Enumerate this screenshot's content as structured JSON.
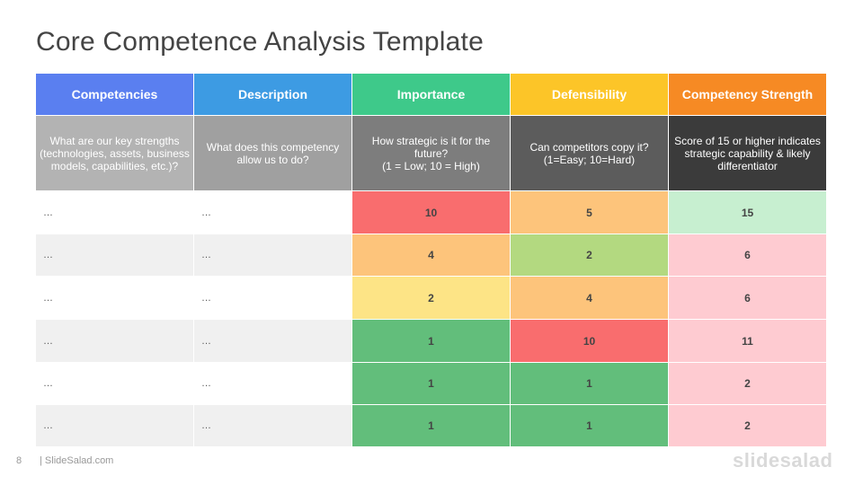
{
  "title": "Core Competence Analysis Template",
  "colors": {
    "header": [
      "#5a7ff0",
      "#3d9be3",
      "#3ec98a",
      "#fcc528",
      "#f68a24"
    ],
    "question": [
      "#b3b3b3",
      "#a0a0a0",
      "#7d7d7d",
      "#5c5c5c",
      "#3b3b3b"
    ],
    "row_bg": [
      "#ffffff",
      "#f0f0f0"
    ],
    "red": "#f96d6e",
    "orange": "#fdc47b",
    "yellow": "#fde486",
    "lightgreen": "#b3d980",
    "green": "#62be7b",
    "pink": "#fecbd1",
    "mint": "#c7efd0"
  },
  "headers": [
    "Competencies",
    "Description",
    "Importance",
    "Defensibility",
    "Competency Strength"
  ],
  "questions": [
    "What are our key strengths (technologies, assets, business models, capabilities, etc.)?",
    "What does this competency allow us to do?",
    "How strategic is it for the future?\n(1 = Low; 10 = High)",
    "Can competitors copy it?\n(1=Easy; 10=Hard)",
    "Score of 15 or higher indicates strategic capability & likely differentiator"
  ],
  "rows": [
    {
      "competency": "…",
      "description": "…",
      "importance": "10",
      "defensibility": "5",
      "strength": "15"
    },
    {
      "competency": "…",
      "description": "…",
      "importance": "4",
      "defensibility": "2",
      "strength": "6"
    },
    {
      "competency": "…",
      "description": "…",
      "importance": "2",
      "defensibility": "4",
      "strength": "6"
    },
    {
      "competency": "…",
      "description": "…",
      "importance": "1",
      "defensibility": "10",
      "strength": "11"
    },
    {
      "competency": "…",
      "description": "…",
      "importance": "1",
      "defensibility": "1",
      "strength": "2"
    },
    {
      "competency": "…",
      "description": "…",
      "importance": "1",
      "defensibility": "1",
      "strength": "2"
    }
  ],
  "row_colors": [
    {
      "importance": "red",
      "defensibility": "orange",
      "strength": "mint"
    },
    {
      "importance": "orange",
      "defensibility": "lightgreen",
      "strength": "pink"
    },
    {
      "importance": "yellow",
      "defensibility": "orange",
      "strength": "pink"
    },
    {
      "importance": "green",
      "defensibility": "red",
      "strength": "pink"
    },
    {
      "importance": "green",
      "defensibility": "green",
      "strength": "pink"
    },
    {
      "importance": "green",
      "defensibility": "green",
      "strength": "pink"
    }
  ],
  "footer": {
    "page": "8",
    "source": "| SlideSalad.com",
    "logo": "slidesalad"
  }
}
